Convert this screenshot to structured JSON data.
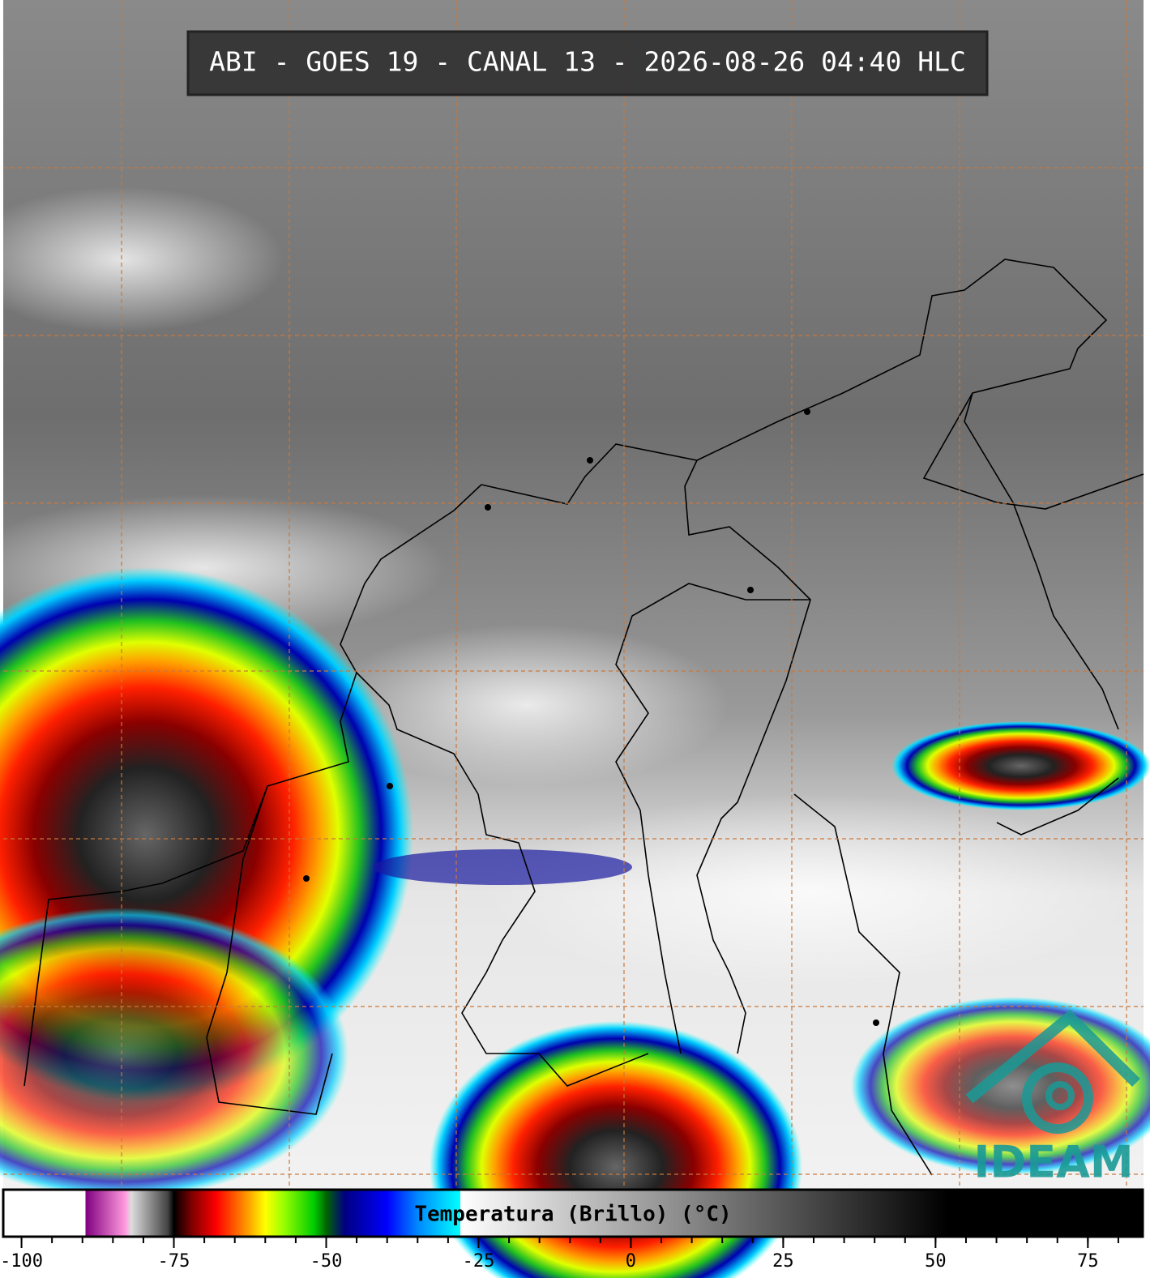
{
  "title": "ABI - GOES 19 - CANAL 13 - 2026-08-26 04:40 HLC",
  "logo": "IDEAM",
  "colorbar": {
    "label": "Temperatura (Brillo) (°C)",
    "xlim": [
      -103,
      84
    ],
    "xticks": [
      -100,
      -75,
      -50,
      -25,
      0,
      25,
      50,
      75
    ],
    "minor_xticks": [
      -100,
      -95,
      -90,
      -85,
      -80,
      -75,
      -70,
      -65,
      -60,
      -55,
      -50,
      -45,
      -40,
      -35,
      -30,
      -25,
      -20,
      -15,
      -10,
      -5,
      0,
      5,
      10,
      15,
      20,
      25,
      30,
      35,
      40,
      45,
      50,
      55,
      60,
      65,
      70,
      75,
      80
    ],
    "colormap": [
      [
        -103,
        "#ffffff"
      ],
      [
        -89.5,
        "#ffffff"
      ],
      [
        -89.5,
        "#800080"
      ],
      [
        -83,
        "#ff99dd"
      ],
      [
        -82,
        "#dddddd"
      ],
      [
        -76,
        "#444444"
      ],
      [
        -75,
        "#000000"
      ],
      [
        -72,
        "#800000"
      ],
      [
        -68,
        "#ff0000"
      ],
      [
        -63,
        "#ff9900"
      ],
      [
        -60,
        "#ffff00"
      ],
      [
        -57,
        "#99ff00"
      ],
      [
        -52,
        "#00cc00"
      ],
      [
        -50,
        "#006600"
      ],
      [
        -47,
        "#000080"
      ],
      [
        -40,
        "#0000ff"
      ],
      [
        -35,
        "#0088ff"
      ],
      [
        -28,
        "#00ffff"
      ],
      [
        -28,
        "#ffffff"
      ],
      [
        52,
        "#000000"
      ],
      [
        84,
        "#000000"
      ]
    ]
  }
}
